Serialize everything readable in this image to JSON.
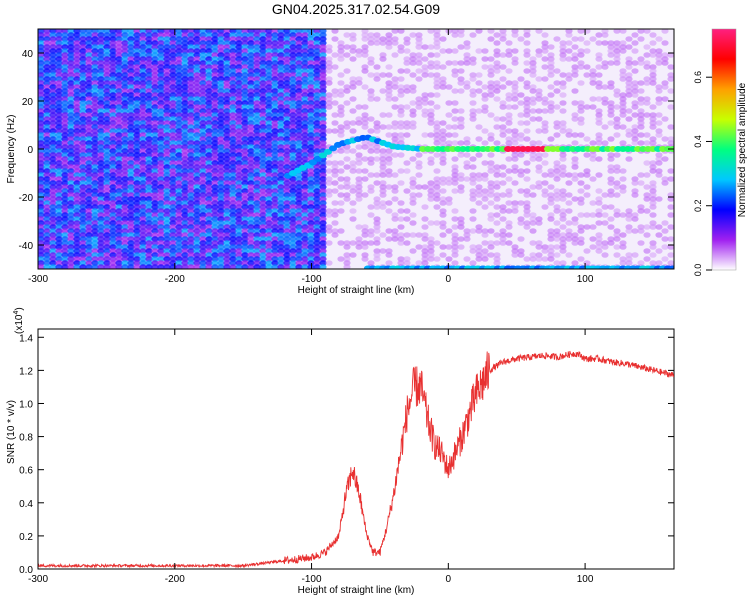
{
  "title": "GN04.2025.317.02.54.G09",
  "chart_data": [
    {
      "type": "heatmap",
      "title": "GN04.2025.317.02.54.G09",
      "xlabel": "Height of straight line (km)",
      "ylabel": "Frequency (Hz)",
      "xlim": [
        -300,
        165
      ],
      "ylim": [
        -50,
        50
      ],
      "xticks": [
        -300,
        -200,
        -100,
        0,
        100
      ],
      "yticks": [
        -40,
        -20,
        0,
        20,
        40
      ],
      "colorbar": {
        "label": "Normalized spectral amplitude",
        "range": [
          0,
          0.75
        ],
        "ticks": [
          0.0,
          0.2,
          0.4,
          0.6
        ],
        "colormap": [
          "#ffffff",
          "#a020f0",
          "#0000ff",
          "#00c8ff",
          "#00ff80",
          "#c8ff00",
          "#ffa000",
          "#ff0000",
          "#ff2080"
        ]
      },
      "features": [
        {
          "name": "carrier",
          "x": [
            -120,
            -100,
            -80,
            -60,
            -40,
            -20,
            0,
            165
          ],
          "y": [
            -12,
            -6,
            2,
            5,
            1,
            0,
            0,
            0
          ]
        },
        {
          "name": "noise",
          "x_range": [
            -300,
            -90
          ],
          "y_range": [
            -50,
            50
          ]
        }
      ]
    },
    {
      "type": "line",
      "xlabel": "Height of straight line (km)",
      "ylabel": "SNR (10 * v/v)",
      "y_scale_label": "(x10",
      "y_scale_exp": "4",
      "xlim": [
        -300,
        165
      ],
      "ylim": [
        0,
        1.45
      ],
      "xticks": [
        -300,
        -200,
        -100,
        0,
        100
      ],
      "yticks": [
        0.0,
        0.2,
        0.4,
        0.6,
        0.8,
        1.0,
        1.2,
        1.4
      ],
      "color": "#e83030",
      "x": [
        -300,
        -250,
        -200,
        -150,
        -120,
        -100,
        -90,
        -80,
        -75,
        -70,
        -65,
        -60,
        -55,
        -50,
        -45,
        -40,
        -35,
        -30,
        -25,
        -20,
        -15,
        -10,
        -5,
        0,
        10,
        20,
        30,
        40,
        50,
        60,
        70,
        80,
        90,
        95,
        100,
        110,
        120,
        130,
        140,
        150,
        165
      ],
      "y": [
        0.02,
        0.02,
        0.02,
        0.02,
        0.05,
        0.07,
        0.1,
        0.2,
        0.45,
        0.6,
        0.45,
        0.22,
        0.1,
        0.1,
        0.25,
        0.45,
        0.7,
        0.95,
        1.1,
        1.1,
        0.9,
        0.75,
        0.7,
        0.6,
        0.8,
        1.05,
        1.2,
        1.25,
        1.27,
        1.28,
        1.29,
        1.28,
        1.3,
        1.3,
        1.27,
        1.27,
        1.25,
        1.24,
        1.22,
        1.2,
        1.17
      ]
    }
  ]
}
